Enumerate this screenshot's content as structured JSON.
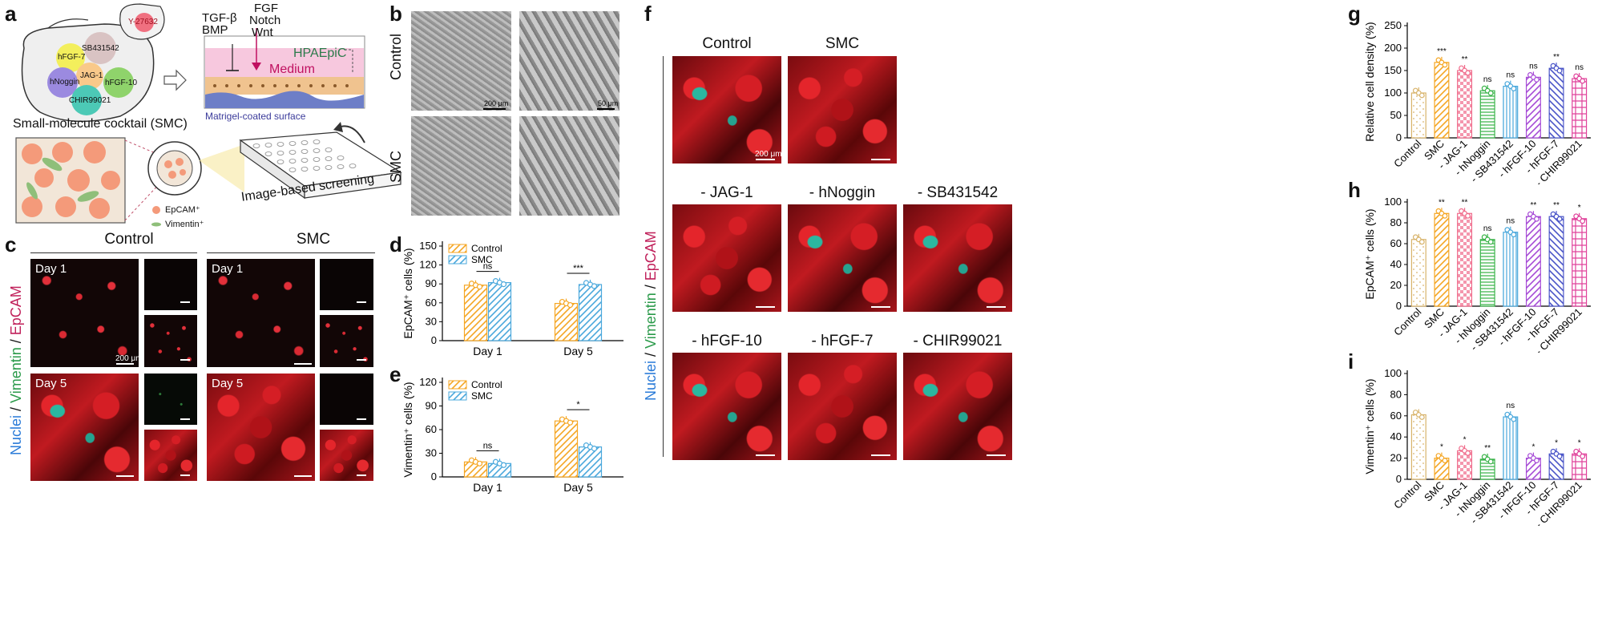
{
  "panels": {
    "a": {
      "label": "a",
      "cocktail_items": [
        "hFGF-7",
        "SB431542",
        "JAG-1",
        "hNoggin",
        "CHIR99021",
        "hFGF-10"
      ],
      "extra_bag": "Y-27632",
      "cocktail_caption": "Small-molecule cocktail (SMC)",
      "signals_left": [
        "TGF-β",
        "BMP"
      ],
      "signals_right": [
        "FGF",
        "Notch",
        "Wnt"
      ],
      "cell_type": "HPAEpiC",
      "medium": "Medium",
      "surface": "Matrigel-coated surface",
      "legend": [
        "EpCAM⁺",
        "Vimentin⁺"
      ],
      "screen_caption": "Image-based screening"
    },
    "b": {
      "label": "b",
      "rows": [
        "Control",
        "SMC"
      ],
      "scale1": "200 μm",
      "scale2": "50 μm"
    },
    "c": {
      "label": "c",
      "cols": [
        "Control",
        "SMC"
      ],
      "side_label": [
        "Nuclei",
        " / ",
        "Vimentin",
        " / ",
        "EpCAM"
      ],
      "day1": "Day 1",
      "day5": "Day 5",
      "scale": "200 μm"
    },
    "f": {
      "label": "f",
      "tiles": [
        "Control",
        "SMC",
        "- JAG-1",
        "- hNoggin",
        "- SB431542",
        "- hFGF-10",
        "- hFGF-7",
        "- CHIR99021"
      ],
      "side_label": [
        "Nuclei",
        " / ",
        "Vimentin",
        " / ",
        "EpCAM"
      ],
      "scale": "200 μm"
    },
    "g_label": "g",
    "h_label": "h",
    "i_label": "i",
    "d_label": "d",
    "e_label": "e"
  },
  "colors": {
    "control_orange": "#f5a623",
    "smc_blue": "#4aa8dc",
    "pink": "#f06a8a",
    "green": "#3cb44b",
    "purple": "#a64bd6",
    "indigo": "#4a55c8",
    "magenta": "#e0409a"
  },
  "chart_data": [
    {
      "id": "d",
      "type": "bar",
      "ylabel": "EpCAM⁺ cells (%)",
      "categories": [
        "Day 1",
        "Day 5"
      ],
      "series": [
        {
          "name": "Control",
          "values": [
            88,
            59
          ]
        },
        {
          "name": "SMC",
          "values": [
            92,
            89
          ]
        }
      ],
      "ylim": [
        0,
        150
      ],
      "yticks": [
        0,
        30,
        60,
        90,
        120,
        150
      ],
      "significance": [
        "ns",
        "***"
      ]
    },
    {
      "id": "e",
      "type": "bar",
      "ylabel": "Vimentin⁺ cells (%)",
      "categories": [
        "Day 1",
        "Day 5"
      ],
      "series": [
        {
          "name": "Control",
          "values": [
            19,
            71
          ]
        },
        {
          "name": "SMC",
          "values": [
            17,
            38
          ]
        }
      ],
      "ylim": [
        0,
        120
      ],
      "yticks": [
        0,
        30,
        60,
        90,
        120
      ],
      "significance": [
        "ns",
        "*"
      ]
    },
    {
      "id": "g",
      "type": "bar",
      "ylabel": "Relative cell density (%)",
      "categories": [
        "Control",
        "SMC",
        "- JAG-1",
        "- hNoggin",
        "- SB431542",
        "- hFGF-10",
        "- hFGF-7",
        "- CHIR99021"
      ],
      "values": [
        100,
        168,
        150,
        105,
        115,
        135,
        155,
        132
      ],
      "ylim": [
        0,
        250
      ],
      "yticks": [
        0,
        50,
        100,
        150,
        200,
        250
      ],
      "significance": [
        "",
        "***",
        "**",
        "ns",
        "ns",
        "ns",
        "**",
        "ns"
      ]
    },
    {
      "id": "h",
      "type": "bar",
      "ylabel": "EpCAM⁺ cells (%)",
      "categories": [
        "Control",
        "SMC",
        "- JAG-1",
        "- hNoggin",
        "- SB431542",
        "- hFGF-10",
        "- hFGF-7",
        "- CHIR99021"
      ],
      "values": [
        64,
        89,
        89,
        64,
        71,
        86,
        86,
        84
      ],
      "ylim": [
        0,
        100
      ],
      "yticks": [
        0,
        20,
        40,
        60,
        80,
        100
      ],
      "significance": [
        "",
        "**",
        "**",
        "ns",
        "ns",
        "**",
        "**",
        "*"
      ]
    },
    {
      "id": "i",
      "type": "bar",
      "ylabel": "Vimentin⁺ cells (%)",
      "categories": [
        "Control",
        "SMC",
        "- JAG-1",
        "- hNoggin",
        "- SB431542",
        "- hFGF-10",
        "- hFGF-7",
        "- CHIR99021"
      ],
      "values": [
        61,
        20,
        27,
        19,
        59,
        20,
        24,
        24
      ],
      "ylim": [
        0,
        100
      ],
      "yticks": [
        0,
        20,
        40,
        60,
        80,
        100
      ],
      "significance": [
        "",
        "*",
        "*",
        "**",
        "ns",
        "*",
        "*",
        "*"
      ]
    }
  ]
}
